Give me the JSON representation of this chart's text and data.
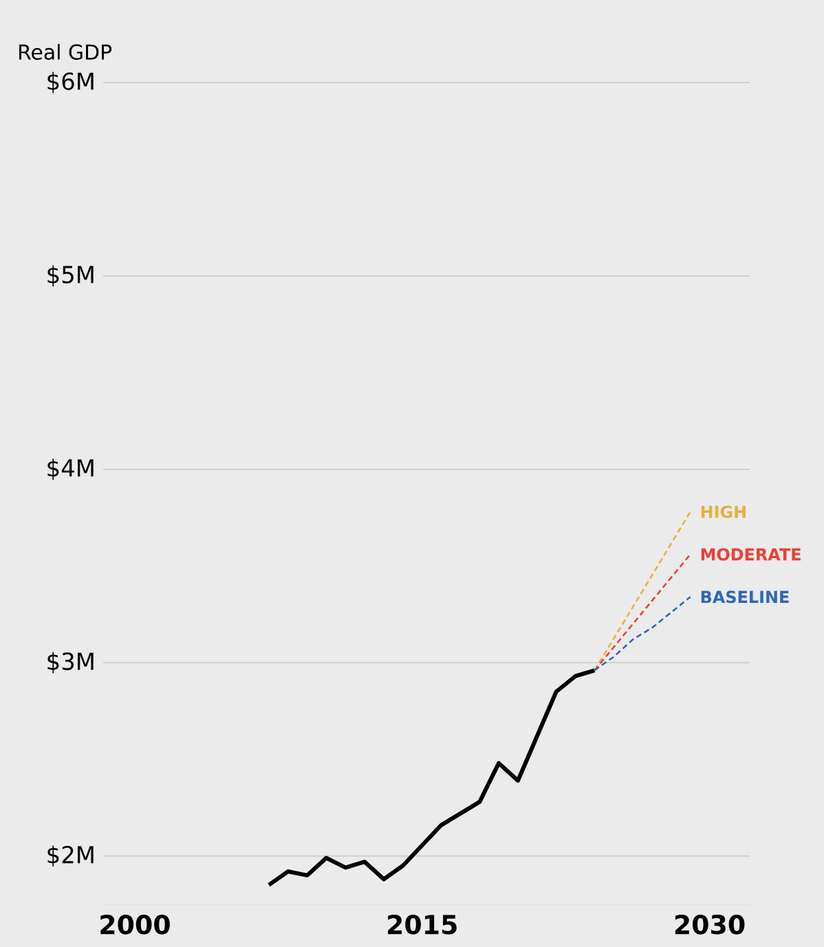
{
  "chart_data": {
    "type": "line",
    "ylabel": "Real GDP",
    "xlim": [
      1998.35,
      2032.1
    ],
    "xticks": [
      2000,
      2015,
      2030
    ],
    "ylim": [
      1.75,
      6.0
    ],
    "yticks": [
      {
        "value": 2,
        "label": "$2M"
      },
      {
        "value": 3,
        "label": "$3M"
      },
      {
        "value": 4,
        "label": "$4M"
      },
      {
        "value": 5,
        "label": "$5M"
      },
      {
        "value": 6,
        "label": "$6M"
      }
    ],
    "grid": "y",
    "legend": false,
    "marker": "none",
    "series": [
      {
        "color": "#000000",
        "line_style": "solid",
        "x": [
          2007,
          2008,
          2009,
          2010,
          2011,
          2012,
          2013,
          2014,
          2016,
          2018,
          2019,
          2020,
          2022,
          2023,
          2024
        ],
        "values": [
          1.85,
          1.92,
          1.9,
          1.99,
          1.94,
          1.97,
          1.88,
          1.95,
          2.16,
          2.28,
          2.48,
          2.39,
          2.85,
          2.93,
          2.96
        ]
      },
      {
        "name": "HIGH",
        "color": "#e6b040",
        "line_style": "dashed",
        "x": [
          2024,
          2029
        ],
        "values": [
          2.96,
          3.78
        ]
      },
      {
        "name": "MODERATE",
        "color": "#e8413a",
        "line_style": "dashed",
        "x": [
          2024,
          2029
        ],
        "values": [
          2.96,
          3.56
        ]
      },
      {
        "name": "BASELINE",
        "color": "#2f67b5",
        "line_style": "dashed",
        "x": [
          2024,
          2025,
          2026,
          2027,
          2028,
          2029
        ],
        "values": [
          2.96,
          3.03,
          3.12,
          3.18,
          3.26,
          3.34
        ]
      }
    ]
  }
}
